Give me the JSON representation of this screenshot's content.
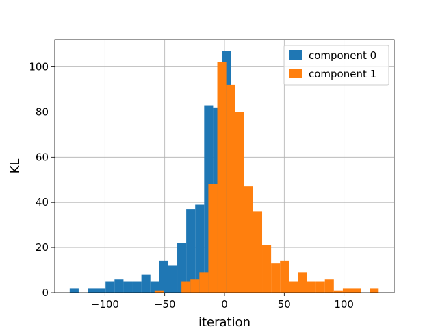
{
  "chart_data": {
    "type": "histogram",
    "title": "",
    "xlabel": "iteration",
    "ylabel": "KL",
    "xlim": [
      -142,
      142
    ],
    "ylim": [
      0,
      112
    ],
    "xticks": [
      -100,
      -50,
      0,
      50,
      100
    ],
    "xtick_labels": [
      "−100",
      "−50",
      "0",
      "50",
      "100"
    ],
    "yticks": [
      0,
      20,
      40,
      60,
      80,
      100
    ],
    "ytick_labels": [
      "0",
      "20",
      "40",
      "60",
      "80",
      "100"
    ],
    "grid": true,
    "legend_position": "top-right",
    "series": [
      {
        "name": "component 0",
        "color": "#1f77b4",
        "bins": [
          {
            "x0": -129.5,
            "x1": -122,
            "y": 2
          },
          {
            "x0": -114.5,
            "x1": -99.5,
            "y": 2
          },
          {
            "x0": -99.5,
            "x1": -92,
            "y": 5
          },
          {
            "x0": -92,
            "x1": -84.5,
            "y": 6
          },
          {
            "x0": -84.5,
            "x1": -77,
            "y": 5
          },
          {
            "x0": -77,
            "x1": -69.5,
            "y": 5
          },
          {
            "x0": -69.5,
            "x1": -62,
            "y": 8
          },
          {
            "x0": -62,
            "x1": -54.5,
            "y": 5
          },
          {
            "x0": -54.5,
            "x1": -47,
            "y": 14
          },
          {
            "x0": -47,
            "x1": -39.5,
            "y": 12
          },
          {
            "x0": -39.5,
            "x1": -32,
            "y": 22
          },
          {
            "x0": -32,
            "x1": -24.5,
            "y": 37
          },
          {
            "x0": -24.5,
            "x1": -17,
            "y": 39
          },
          {
            "x0": -17,
            "x1": -9.5,
            "y": 83
          },
          {
            "x0": -9.5,
            "x1": -2,
            "y": 82
          },
          {
            "x0": -2,
            "x1": 5.5,
            "y": 107
          }
        ]
      },
      {
        "name": "component 1",
        "color": "#ff7f0e",
        "bins": [
          {
            "x0": -58.5,
            "x1": -51,
            "y": 1
          },
          {
            "x0": -36,
            "x1": -28.5,
            "y": 5
          },
          {
            "x0": -28.5,
            "x1": -21,
            "y": 6
          },
          {
            "x0": -21,
            "x1": -13.5,
            "y": 9
          },
          {
            "x0": -13.5,
            "x1": -6,
            "y": 48
          },
          {
            "x0": -6,
            "x1": 1.5,
            "y": 102
          },
          {
            "x0": 1.5,
            "x1": 9,
            "y": 92
          },
          {
            "x0": 9,
            "x1": 16.5,
            "y": 80
          },
          {
            "x0": 16.5,
            "x1": 24,
            "y": 47
          },
          {
            "x0": 24,
            "x1": 31.5,
            "y": 36
          },
          {
            "x0": 31.5,
            "x1": 39,
            "y": 21
          },
          {
            "x0": 39,
            "x1": 46.5,
            "y": 13
          },
          {
            "x0": 46.5,
            "x1": 54,
            "y": 14
          },
          {
            "x0": 54,
            "x1": 61.5,
            "y": 5
          },
          {
            "x0": 61.5,
            "x1": 69,
            "y": 9
          },
          {
            "x0": 69,
            "x1": 76.5,
            "y": 5
          },
          {
            "x0": 76.5,
            "x1": 84,
            "y": 5
          },
          {
            "x0": 84,
            "x1": 91.5,
            "y": 6
          },
          {
            "x0": 91.5,
            "x1": 99,
            "y": 1
          },
          {
            "x0": 99,
            "x1": 106.5,
            "y": 2
          },
          {
            "x0": 106.5,
            "x1": 114,
            "y": 2
          },
          {
            "x0": 121.5,
            "x1": 129,
            "y": 2
          }
        ]
      }
    ]
  }
}
